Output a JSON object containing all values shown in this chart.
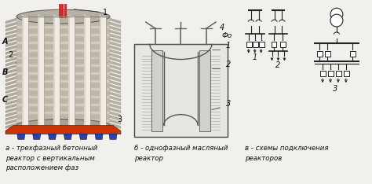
{
  "background_color": "#f2f0ec",
  "fig_width": 4.74,
  "fig_height": 2.34,
  "dpi": 100,
  "caption_a": "а - трехфазный бетонный\nреактор с вертикальным\nрасположением фаз",
  "caption_b": "б - однофазный масляный\nреактор",
  "caption_v": "в - схемы подключения\nреакторов",
  "font_size": 6.2,
  "font_color": "#111111"
}
